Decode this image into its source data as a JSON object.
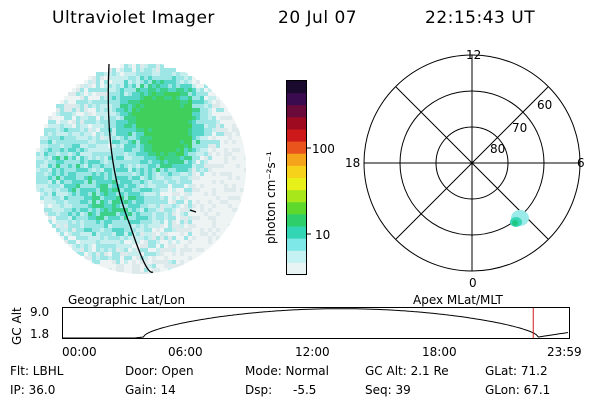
{
  "header": {
    "instrument": "Ultraviolet Imager",
    "date": "20 Jul 07",
    "time": "22:15:43 UT"
  },
  "left_panel": {
    "label": "Geographic Lat/Lon"
  },
  "right_panel": {
    "label": "Apex MLat/MLT",
    "mlt_labels": {
      "top": "12",
      "left": "18",
      "right": "6",
      "bottom": "0"
    },
    "lat_labels": [
      "60",
      "70",
      "80"
    ]
  },
  "colorbar": {
    "unit": "photon cm⁻²s⁻¹",
    "ticks": [
      "100",
      "10"
    ],
    "colors": [
      "#1a0a2e",
      "#3b0b4f",
      "#6a0a3a",
      "#9e0a1f",
      "#cc1a1a",
      "#e8541c",
      "#f5a31a",
      "#f7d21a",
      "#e8f01a",
      "#a8e81a",
      "#5fd82e",
      "#2ecf6a",
      "#32d6b4",
      "#7ee8e8",
      "#c4f2f2",
      "#e8f4f4"
    ]
  },
  "alt_plot": {
    "ylabel": "GC Alt",
    "yticks": [
      "9.0",
      "1.8"
    ],
    "xticks": [
      "00:00",
      "06:00",
      "12:00",
      "18:00",
      "23:59"
    ],
    "marker_hour": 22.26,
    "marker_color": "#d01818"
  },
  "info": {
    "flt": "Flt: LBHL",
    "ip": "IP: 36.0",
    "door": "Door: Open",
    "gain": "Gain: 14",
    "mode": "Mode: Normal",
    "dsp_label": "Dsp:",
    "dsp_value": "-5.5",
    "gc_alt": "GC Alt: 2.1 Re",
    "seq": "Seq: 39",
    "glat": "GLat: 71.2",
    "glon": "GLon: 67.1"
  }
}
